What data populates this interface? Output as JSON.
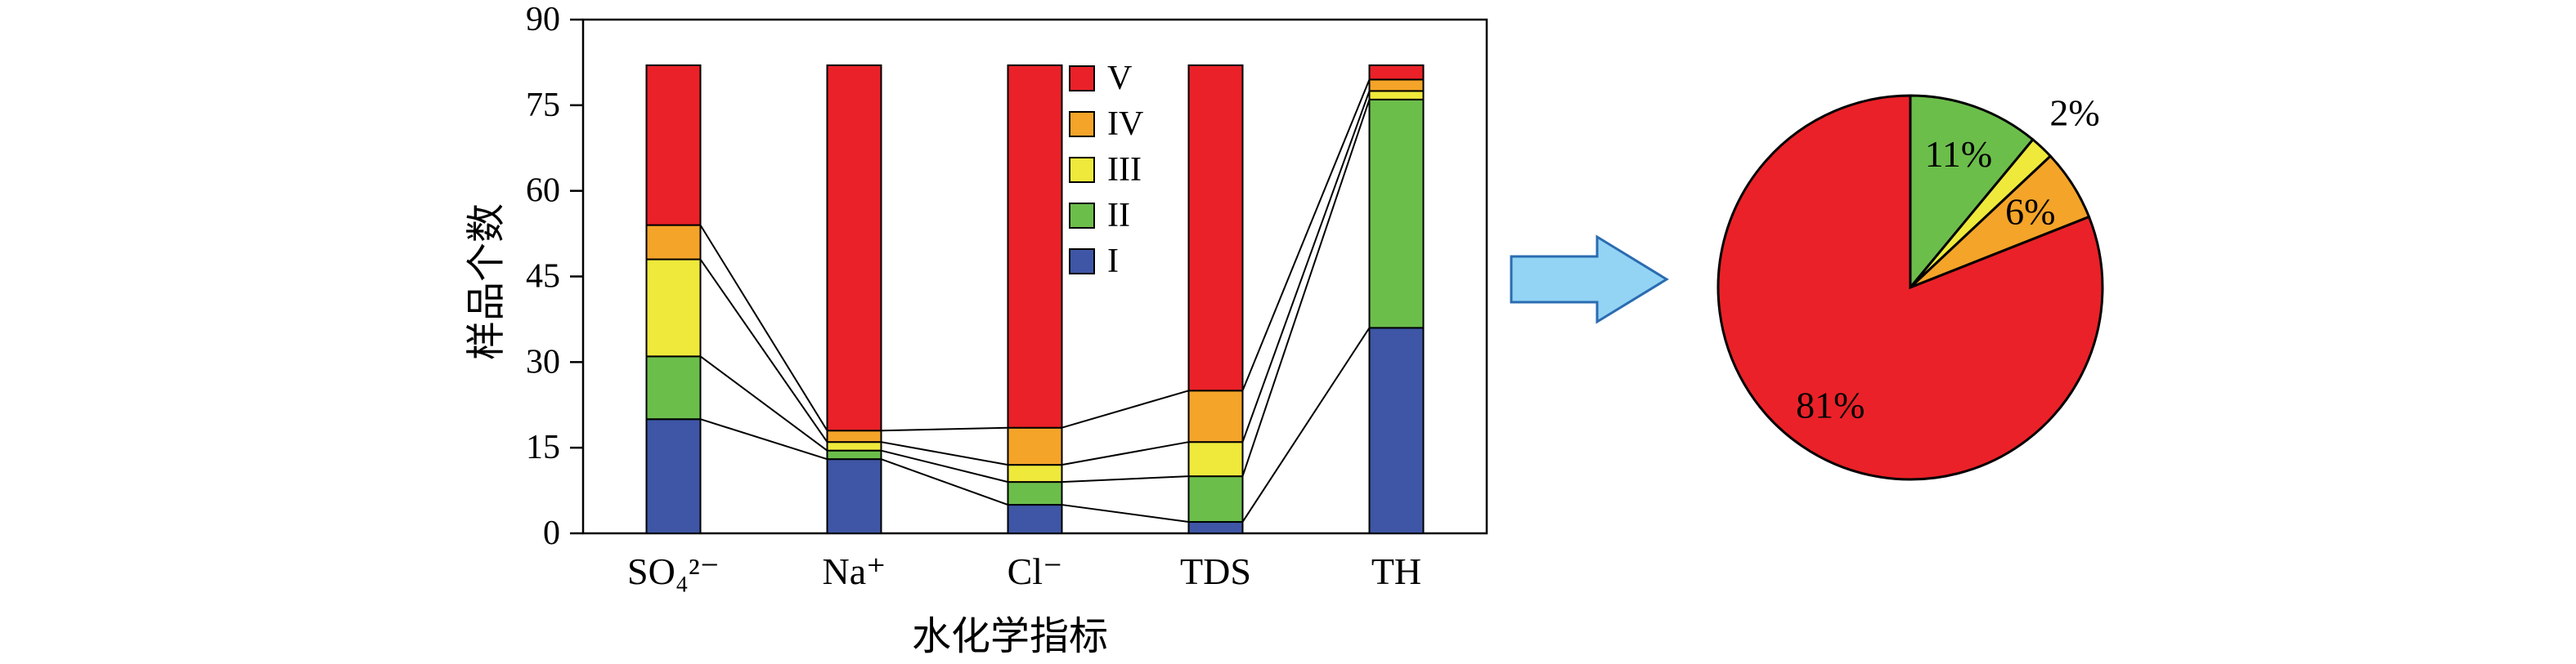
{
  "figure": {
    "description": "Stacked bar chart of sample counts per water-quality class (I-V) for five hydrochemical indicators, with an arrow pointing to a pie chart of overall class percentages"
  },
  "chart_data": [
    {
      "type": "bar",
      "stacked": true,
      "title": "",
      "xlabel": "水化学指标",
      "ylabel": "样品个数",
      "ylim": [
        0,
        90
      ],
      "yticks": [
        0,
        15,
        30,
        45,
        60,
        75,
        90
      ],
      "categories": [
        "SO₄²⁻",
        "Na⁺",
        "Cl⁻",
        "TDS",
        "TH"
      ],
      "series": [
        {
          "name": "I",
          "color": "#3E56A5",
          "values": [
            20,
            13,
            5,
            2,
            36
          ]
        },
        {
          "name": "II",
          "color": "#6CBE4B",
          "values": [
            11,
            1.5,
            4,
            8,
            40
          ]
        },
        {
          "name": "III",
          "color": "#EFE93C",
          "values": [
            17,
            1.5,
            3,
            6,
            1.5
          ]
        },
        {
          "name": "IV",
          "color": "#F4A428",
          "values": [
            6,
            2,
            6.5,
            9,
            2
          ]
        },
        {
          "name": "V",
          "color": "#EA2128",
          "values": [
            28,
            64,
            63.5,
            57,
            2.5
          ]
        }
      ],
      "legend": [
        "V",
        "IV",
        "III",
        "II",
        "I"
      ],
      "bar_total": 82,
      "connector_lines": true,
      "legend_position": "top-center-inside",
      "grid": false
    },
    {
      "type": "pie",
      "start_angle_deg": 0,
      "direction": "clockwise",
      "slices": [
        {
          "label": "II",
          "value": 11,
          "display": "11%",
          "color": "#6CBE4B"
        },
        {
          "label": "III",
          "value": 2,
          "display": "2%",
          "color": "#EFE93C"
        },
        {
          "label": "IV",
          "value": 6,
          "display": "6%",
          "color": "#F4A428"
        },
        {
          "label": "V",
          "value": 81,
          "display": "81%",
          "color": "#EA2128"
        }
      ]
    }
  ],
  "arrow": {
    "name": "right-block-arrow",
    "fill": "#93D4F5",
    "stroke": "#2B6CB0"
  }
}
